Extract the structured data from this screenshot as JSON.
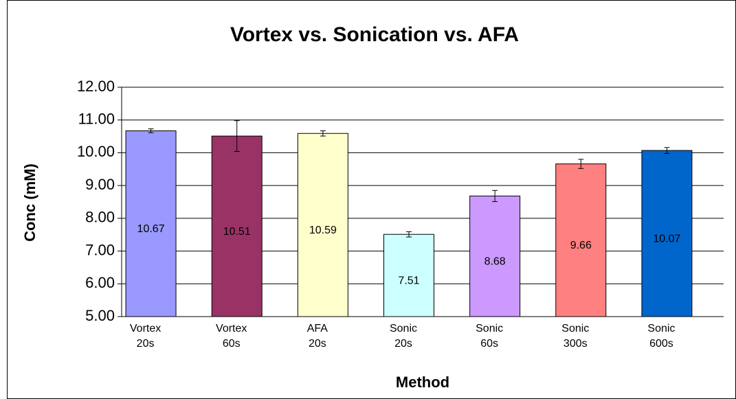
{
  "chart_data": {
    "type": "bar",
    "title": "Vortex vs. Sonication vs. AFA",
    "x_label": "Method",
    "y_label": "Conc (mM)",
    "categories": [
      [
        "Vortex",
        "20s"
      ],
      [
        "Vortex",
        "60s"
      ],
      [
        "AFA",
        "20s"
      ],
      [
        "Sonic",
        "20s"
      ],
      [
        "Sonic",
        "60s"
      ],
      [
        "Sonic",
        "300s"
      ],
      [
        "Sonic",
        "600s"
      ]
    ],
    "values": [
      10.67,
      10.51,
      10.59,
      7.51,
      8.68,
      9.66,
      10.07
    ],
    "errors": [
      0.06,
      0.47,
      0.08,
      0.08,
      0.17,
      0.14,
      0.09
    ],
    "colors": [
      "#9999ff",
      "#993366",
      "#ffffcc",
      "#ccffff",
      "#cc99ff",
      "#ff8080",
      "#0066cc"
    ],
    "ylim": [
      5,
      12
    ],
    "yticks": [
      {
        "value": 5,
        "label": "5.00"
      },
      {
        "value": 6,
        "label": "6.00"
      },
      {
        "value": 7,
        "label": "7.00"
      },
      {
        "value": 8,
        "label": "8.00"
      },
      {
        "value": 9,
        "label": "9.00"
      },
      {
        "value": 10,
        "label": "10.00"
      },
      {
        "value": 11,
        "label": "11.00"
      },
      {
        "value": 12,
        "label": "12.00"
      }
    ],
    "grid": true
  }
}
